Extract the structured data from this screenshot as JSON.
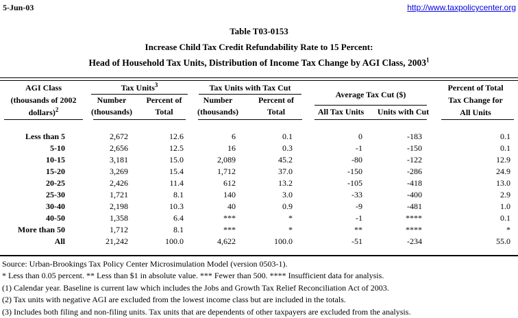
{
  "topbar": {
    "date": "5-Jun-03",
    "url": "http://www.taxpolicycenter.org"
  },
  "title": {
    "line1": "Table T03-0153",
    "line2": "Increase Child Tax Credit Refundability Rate to 15 Percent:",
    "line3": "Head of Household Tax Units, Distribution of Income Tax Change by AGI Class, 2003",
    "line3_sup": "1"
  },
  "table": {
    "agi_header": {
      "line1": "AGI Class",
      "line2": "(thousands of 2002",
      "line3": "dollars)",
      "sup": "2"
    },
    "group_tax_units": {
      "label": "Tax Units",
      "sup": "3"
    },
    "group_tax_units_with_cut": "Tax Units with Tax Cut",
    "group_avg_tax_cut": "Average Tax Cut ($)",
    "pct_header": {
      "line1": "Percent of Total",
      "line2": "Tax Change for",
      "line3": "All Units"
    },
    "sub": {
      "number_l1": "Number",
      "number_l2": "(thousands)",
      "percent_l1": "Percent of",
      "percent_l2": "Total",
      "all_tax_units": "All Tax Units",
      "units_with_cut": "Units with Cut"
    },
    "rows": [
      [
        "Less than 5",
        "2,672",
        "12.6",
        "6",
        "0.1",
        "0",
        "-183",
        "0.1"
      ],
      [
        "5-10",
        "2,656",
        "12.5",
        "16",
        "0.3",
        "-1",
        "-150",
        "0.1"
      ],
      [
        "10-15",
        "3,181",
        "15.0",
        "2,089",
        "45.2",
        "-80",
        "-122",
        "12.9"
      ],
      [
        "15-20",
        "3,269",
        "15.4",
        "1,712",
        "37.0",
        "-150",
        "-286",
        "24.9"
      ],
      [
        "20-25",
        "2,426",
        "11.4",
        "612",
        "13.2",
        "-105",
        "-418",
        "13.0"
      ],
      [
        "25-30",
        "1,721",
        "8.1",
        "140",
        "3.0",
        "-33",
        "-400",
        "2.9"
      ],
      [
        "30-40",
        "2,198",
        "10.3",
        "40",
        "0.9",
        "-9",
        "-481",
        "1.0"
      ],
      [
        "40-50",
        "1,358",
        "6.4",
        "***",
        "*",
        "-1",
        "****",
        "0.1"
      ],
      [
        "More than 50",
        "1,712",
        "8.1",
        "***",
        "*",
        "**",
        "****",
        "*"
      ],
      [
        "All",
        "21,242",
        "100.0",
        "4,622",
        "100.0",
        "-51",
        "-234",
        "55.0"
      ]
    ]
  },
  "footer": {
    "source": "Source: Urban-Brookings Tax Policy Center Microsimulation Model (version 0503-1).",
    "symbols": "* Less than 0.05 percent.  ** Less than $1 in absolute value. *** Fewer than 500.  **** Insufficient data for analysis.",
    "note1": "(1) Calendar year. Baseline is current law which includes the Jobs and Growth Tax Relief Reconciliation Act of 2003.",
    "note2": "(2) Tax units with negative AGI are excluded from the lowest income class but are included in the totals.",
    "note3": "(3) Includes both filing and non-filing units.  Tax units that are dependents of other taxpayers are excluded from the analysis."
  },
  "colors": {
    "link": "#0000E0",
    "text": "#000000",
    "background": "#FFFFFF"
  }
}
